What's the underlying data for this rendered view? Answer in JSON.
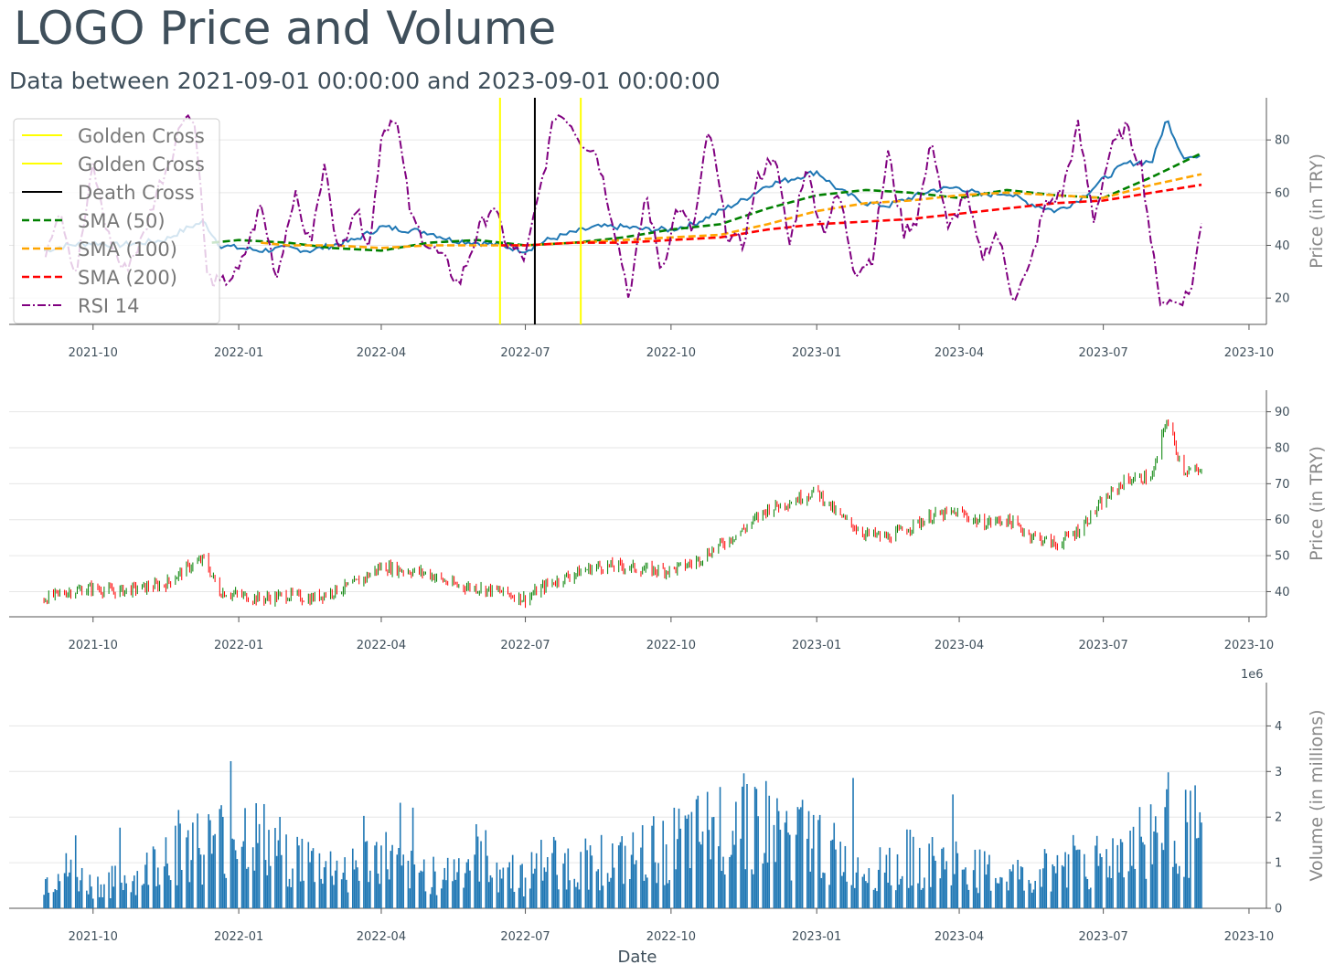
{
  "title": "LOGO Price and Volume",
  "subtitle": "Data between 2021-09-01 00:00:00 and 2023-09-01 00:00:00",
  "colors": {
    "price": "#1f77b4",
    "sma50": "#008000",
    "sma100": "#ffa500",
    "sma200": "#ff0000",
    "rsi": "#800080",
    "golden_cross": "#ffff00",
    "death_cross": "#000000",
    "candle_up": "#008000",
    "candle_down": "#ff0000",
    "volume": "#1f77b4",
    "text": "#3f4f5b",
    "grid": "#e6e6e6"
  },
  "chart_data": [
    {
      "type": "line",
      "panel": "price",
      "ylabel": "Price (in TRY)",
      "x_ticks": [
        "2021-10",
        "2022-01",
        "2022-04",
        "2022-07",
        "2022-10",
        "2023-01",
        "2023-04",
        "2023-07",
        "2023-10"
      ],
      "y_ticks": [
        20,
        40,
        60,
        80
      ],
      "ylim": [
        10,
        96
      ],
      "xlim": [
        "2021-08-09",
        "2023-10-12"
      ],
      "grid": "horizontal",
      "legend_position": "upper-left",
      "legend": [
        "Golden Cross",
        "Golden Cross",
        "Death Cross",
        "SMA (50)",
        "SMA (100)",
        "SMA (200)",
        "RSI 14"
      ],
      "vlines": [
        {
          "name": "Golden Cross",
          "date": "2022-06-15"
        },
        {
          "name": "Golden Cross",
          "date": "2022-08-05"
        },
        {
          "name": "Death Cross",
          "date": "2022-07-07"
        }
      ],
      "series": [
        {
          "name": "Close",
          "x": [
            "2021-08-31",
            "2021-09-15",
            "2021-10-01",
            "2021-10-15",
            "2021-11-01",
            "2021-11-15",
            "2021-12-01",
            "2021-12-10",
            "2021-12-20",
            "2022-01-01",
            "2022-01-15",
            "2022-02-01",
            "2022-02-15",
            "2022-03-01",
            "2022-03-15",
            "2022-04-01",
            "2022-04-15",
            "2022-05-01",
            "2022-05-15",
            "2022-06-01",
            "2022-06-15",
            "2022-07-01",
            "2022-07-15",
            "2022-08-01",
            "2022-08-15",
            "2022-09-01",
            "2022-09-15",
            "2022-10-01",
            "2022-10-15",
            "2022-11-01",
            "2022-11-15",
            "2022-12-01",
            "2022-12-15",
            "2023-01-01",
            "2023-01-15",
            "2023-02-01",
            "2023-02-15",
            "2023-03-01",
            "2023-03-15",
            "2023-04-01",
            "2023-04-15",
            "2023-05-01",
            "2023-05-15",
            "2023-06-01",
            "2023-06-15",
            "2023-07-01",
            "2023-07-15",
            "2023-08-01",
            "2023-08-10",
            "2023-08-20",
            "2023-09-01"
          ],
          "y": [
            38,
            40,
            41,
            40,
            41,
            42,
            47,
            49,
            40,
            39,
            38,
            39,
            38,
            40,
            42,
            47,
            46,
            45,
            42,
            41,
            40,
            38,
            42,
            45,
            47,
            47,
            46,
            46,
            48,
            53,
            57,
            63,
            65,
            68,
            61,
            56,
            55,
            58,
            61,
            62,
            59,
            60,
            56,
            53,
            57,
            65,
            71,
            72,
            88,
            74,
            73
          ]
        },
        {
          "name": "SMA (50)",
          "x": [
            "2021-12-15",
            "2022-01-01",
            "2022-02-01",
            "2022-03-01",
            "2022-04-01",
            "2022-05-01",
            "2022-06-01",
            "2022-07-01",
            "2022-08-01",
            "2022-09-01",
            "2022-10-01",
            "2022-11-01",
            "2022-12-01",
            "2023-01-01",
            "2023-02-01",
            "2023-03-01",
            "2023-04-01",
            "2023-05-01",
            "2023-06-01",
            "2023-07-01",
            "2023-08-01",
            "2023-09-01"
          ],
          "y": [
            41,
            42,
            41,
            39,
            38,
            41,
            42,
            40,
            41,
            43,
            46,
            48,
            54,
            59,
            61,
            60,
            58,
            61,
            59,
            58,
            66,
            75
          ]
        },
        {
          "name": "SMA (100)",
          "x": [
            "2022-01-15",
            "2022-02-01",
            "2022-03-01",
            "2022-04-01",
            "2022-05-01",
            "2022-06-01",
            "2022-07-01",
            "2022-08-01",
            "2022-09-01",
            "2022-10-01",
            "2022-11-01",
            "2022-12-01",
            "2023-01-01",
            "2023-02-01",
            "2023-03-01",
            "2023-04-01",
            "2023-05-01",
            "2023-06-01",
            "2023-07-01",
            "2023-08-01",
            "2023-09-01"
          ],
          "y": [
            41,
            40,
            40,
            39,
            40,
            40,
            40,
            41,
            42,
            43,
            44,
            48,
            53,
            56,
            57,
            59,
            60,
            59,
            58,
            63,
            67
          ]
        },
        {
          "name": "SMA (200)",
          "x": [
            "2022-06-15",
            "2022-07-01",
            "2022-08-01",
            "2022-09-01",
            "2022-10-01",
            "2022-11-01",
            "2022-12-01",
            "2023-01-01",
            "2023-02-01",
            "2023-03-01",
            "2023-04-01",
            "2023-05-01",
            "2023-06-01",
            "2023-07-01",
            "2023-08-01",
            "2023-09-01"
          ],
          "y": [
            40,
            40,
            41,
            41,
            42,
            43,
            46,
            48,
            49,
            50,
            52,
            54,
            56,
            57,
            60,
            63
          ]
        },
        {
          "name": "RSI 14",
          "x": [
            "2021-09-01",
            "2021-09-10",
            "2021-09-20",
            "2021-10-01",
            "2021-10-10",
            "2021-10-20",
            "2021-11-01",
            "2021-11-10",
            "2021-11-20",
            "2021-11-28",
            "2021-12-05",
            "2021-12-12",
            "2021-12-20",
            "2022-01-01",
            "2022-01-15",
            "2022-01-25",
            "2022-02-05",
            "2022-02-15",
            "2022-02-25",
            "2022-03-05",
            "2022-03-15",
            "2022-03-25",
            "2022-04-01",
            "2022-04-10",
            "2022-04-20",
            "2022-05-01",
            "2022-05-10",
            "2022-05-20",
            "2022-06-01",
            "2022-06-10",
            "2022-06-20",
            "2022-07-01",
            "2022-07-10",
            "2022-07-20",
            "2022-07-28",
            "2022-08-05",
            "2022-08-15",
            "2022-08-25",
            "2022-09-05",
            "2022-09-15",
            "2022-09-25",
            "2022-10-05",
            "2022-10-15",
            "2022-10-25",
            "2022-11-05",
            "2022-11-15",
            "2022-11-25",
            "2022-12-05",
            "2022-12-15",
            "2022-12-25",
            "2023-01-05",
            "2023-01-15",
            "2023-01-25",
            "2023-02-05",
            "2023-02-15",
            "2023-02-25",
            "2023-03-05",
            "2023-03-15",
            "2023-03-25",
            "2023-04-05",
            "2023-04-15",
            "2023-04-25",
            "2023-05-05",
            "2023-05-15",
            "2023-05-25",
            "2023-06-05",
            "2023-06-15",
            "2023-06-25",
            "2023-07-05",
            "2023-07-15",
            "2023-07-25",
            "2023-08-05",
            "2023-08-15",
            "2023-08-25",
            "2023-09-01"
          ],
          "y": [
            38,
            55,
            28,
            70,
            45,
            30,
            42,
            60,
            75,
            91,
            85,
            28,
            25,
            30,
            55,
            28,
            60,
            40,
            72,
            35,
            55,
            40,
            82,
            90,
            50,
            40,
            35,
            25,
            45,
            55,
            40,
            35,
            60,
            90,
            88,
            80,
            75,
            50,
            20,
            60,
            30,
            55,
            45,
            85,
            45,
            40,
            65,
            75,
            40,
            70,
            45,
            60,
            30,
            35,
            75,
            45,
            50,
            80,
            45,
            60,
            35,
            45,
            20,
            30,
            55,
            60,
            85,
            50,
            75,
            85,
            70,
            20,
            18,
            22,
            48
          ]
        }
      ]
    },
    {
      "type": "candlestick",
      "panel": "ohlc",
      "ylabel": "Price (in TRY)",
      "x_ticks": [
        "2021-10",
        "2022-01",
        "2022-04",
        "2022-07",
        "2022-10",
        "2023-01",
        "2023-04",
        "2023-07",
        "2023-10"
      ],
      "y_ticks": [
        40,
        50,
        60,
        70,
        80,
        90
      ],
      "ylim": [
        33,
        96
      ],
      "grid": "horizontal",
      "x": [
        "2021-08-31",
        "2021-09-15",
        "2021-10-01",
        "2021-10-15",
        "2021-11-01",
        "2021-11-15",
        "2021-12-01",
        "2021-12-10",
        "2021-12-20",
        "2022-01-01",
        "2022-01-15",
        "2022-02-01",
        "2022-02-15",
        "2022-03-01",
        "2022-03-15",
        "2022-04-01",
        "2022-04-15",
        "2022-05-01",
        "2022-05-15",
        "2022-06-01",
        "2022-06-15",
        "2022-07-01",
        "2022-07-15",
        "2022-08-01",
        "2022-08-15",
        "2022-09-01",
        "2022-09-15",
        "2022-10-01",
        "2022-10-15",
        "2022-11-01",
        "2022-11-15",
        "2022-12-01",
        "2022-12-15",
        "2023-01-01",
        "2023-01-15",
        "2023-02-01",
        "2023-02-15",
        "2023-03-01",
        "2023-03-15",
        "2023-04-01",
        "2023-04-15",
        "2023-05-01",
        "2023-05-15",
        "2023-06-01",
        "2023-06-15",
        "2023-07-01",
        "2023-07-15",
        "2023-08-01",
        "2023-08-10",
        "2023-08-20",
        "2023-09-01"
      ],
      "close": [
        38,
        40,
        41,
        40,
        41,
        42,
        47,
        49,
        40,
        39,
        38,
        39,
        38,
        40,
        42,
        47,
        46,
        45,
        42,
        41,
        40,
        38,
        42,
        45,
        47,
        47,
        46,
        46,
        48,
        53,
        57,
        63,
        65,
        68,
        61,
        56,
        55,
        58,
        61,
        62,
        59,
        60,
        56,
        53,
        57,
        65,
        71,
        72,
        88,
        74,
        73
      ]
    },
    {
      "type": "bar",
      "panel": "volume",
      "ylabel": "Volume (in millions)",
      "xlabel": "Date",
      "x_ticks": [
        "2021-10",
        "2022-01",
        "2022-04",
        "2022-07",
        "2022-10",
        "2023-01",
        "2023-04",
        "2023-07",
        "2023-10"
      ],
      "y_ticks": [
        0,
        1,
        2,
        3,
        4
      ],
      "y_offset_label": "1e6",
      "ylim": [
        0,
        4.95
      ],
      "x": [
        "2021-08-31",
        "2021-09-15",
        "2021-10-01",
        "2021-10-15",
        "2021-11-01",
        "2021-11-15",
        "2021-12-01",
        "2021-12-15",
        "2022-01-01",
        "2022-01-15",
        "2022-02-01",
        "2022-02-15",
        "2022-03-01",
        "2022-03-15",
        "2022-04-01",
        "2022-04-15",
        "2022-05-01",
        "2022-05-15",
        "2022-06-01",
        "2022-06-15",
        "2022-07-01",
        "2022-07-15",
        "2022-08-01",
        "2022-08-15",
        "2022-09-01",
        "2022-09-15",
        "2022-10-01",
        "2022-10-15",
        "2022-11-01",
        "2022-11-15",
        "2022-12-01",
        "2022-12-15",
        "2023-01-01",
        "2023-01-15",
        "2023-02-01",
        "2023-02-15",
        "2023-03-01",
        "2023-03-15",
        "2023-04-01",
        "2023-04-15",
        "2023-05-01",
        "2023-05-15",
        "2023-06-01",
        "2023-06-15",
        "2023-07-01",
        "2023-07-15",
        "2023-08-01",
        "2023-08-15",
        "2023-09-01"
      ],
      "values": [
        0.6,
        0.8,
        0.5,
        0.6,
        0.7,
        1.3,
        1.5,
        1.4,
        1.8,
        1.5,
        1.2,
        1.0,
        0.9,
        0.9,
        1.2,
        0.8,
        0.8,
        0.8,
        1.2,
        0.9,
        0.7,
        1.1,
        0.9,
        1.1,
        1.0,
        1.2,
        1.4,
        1.5,
        1.8,
        2.3,
        1.8,
        1.6,
        1.5,
        1.1,
        0.9,
        1.0,
        1.1,
        1.0,
        1.0,
        0.8,
        0.7,
        0.6,
        1.0,
        1.2,
        1.0,
        1.4,
        1.6,
        2.0,
        1.6
      ]
    }
  ]
}
